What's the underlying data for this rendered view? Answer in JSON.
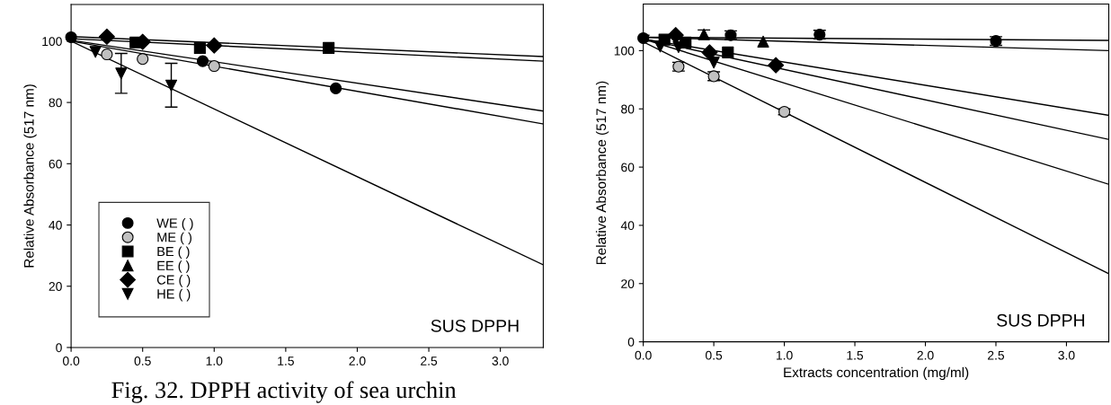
{
  "chart_data": [
    {
      "type": "scatter",
      "ylabel": "Relative Absorbance (517 nm)",
      "xlim": [
        0,
        3.3
      ],
      "ylim": [
        0,
        112
      ],
      "xticks": [
        {
          "value": 0,
          "label": "0.0"
        },
        {
          "value": 0.5,
          "label": "0.5"
        },
        {
          "value": 1.0,
          "label": "1.0"
        },
        {
          "value": 1.5,
          "label": "1.5"
        },
        {
          "value": 2.0,
          "label": "2.0"
        },
        {
          "value": 2.5,
          "label": "2.5"
        },
        {
          "value": 3.0,
          "label": "3.0"
        }
      ],
      "yticks": [
        0,
        20,
        40,
        60,
        80,
        100
      ],
      "grid": false,
      "legend": "bottom left",
      "annotations": [
        "SUS DPPH",
        "Fig. 32. DPPH activity of sea urchin"
      ],
      "series": [
        {
          "name": "WE ( )",
          "color": "#000000",
          "marker": "circle",
          "x": [
            0,
            0.92,
            1.85
          ],
          "values": [
            101.3,
            93.5,
            84.6
          ]
        },
        {
          "name": "ME ( )",
          "color": "#c0c0c0",
          "marker": "circle",
          "x": [
            0.25,
            0.5,
            1.0
          ],
          "values": [
            95.7,
            94.2,
            91.9
          ]
        },
        {
          "name": "BE ( )",
          "color": "#000000",
          "marker": "square",
          "x": [
            0.45,
            0.9,
            1.8
          ],
          "values": [
            99.6,
            97.8,
            97.8
          ]
        },
        {
          "name": "EE ( )",
          "color": "#000000",
          "marker": "triangle"
        },
        {
          "name": "CE ( )",
          "color": "#000000",
          "marker": "diamond",
          "x": [
            0.25,
            0.5,
            1.0
          ],
          "values": [
            101.5,
            99.8,
            98.6
          ]
        },
        {
          "name": "HE ( )",
          "color": "#000000",
          "marker": "triangle-down",
          "x": [
            0.17,
            0.35,
            0.7
          ],
          "values": [
            96.5,
            89.5,
            85.5
          ],
          "errors": [
            null,
            [
              83,
              96
            ],
            [
              78.5,
              92.8
            ]
          ]
        },
        {
          "type": "line",
          "color": "#000000",
          "x": [
            0,
            3.3
          ],
          "values": [
            101.5,
            95
          ]
        },
        {
          "type": "line",
          "color": "#000000",
          "x": [
            0,
            3.3
          ],
          "values": [
            100.8,
            93.5
          ]
        },
        {
          "type": "line",
          "color": "#000000",
          "x": [
            0,
            3.3
          ],
          "values": [
            100.3,
            77.2
          ]
        },
        {
          "type": "line",
          "color": "#000000",
          "x": [
            0,
            3.3
          ],
          "values": [
            100,
            73
          ]
        },
        {
          "type": "line",
          "color": "#000000",
          "x": [
            0,
            3.3
          ],
          "values": [
            100,
            27
          ]
        }
      ]
    },
    {
      "type": "scatter",
      "xlabel": "Extracts concentration (mg/ml)",
      "ylabel": "Relative Absorbance (517 nm)",
      "xlim": [
        0,
        3.3
      ],
      "ylim": [
        0,
        116
      ],
      "xticks": [
        {
          "value": 0,
          "label": "0.0"
        },
        {
          "value": 0.5,
          "label": "0.5"
        },
        {
          "value": 1.0,
          "label": "1.0"
        },
        {
          "value": 1.5,
          "label": "1.5"
        },
        {
          "value": 2.0,
          "label": "2.0"
        },
        {
          "value": 2.5,
          "label": "2.5"
        },
        {
          "value": 3.0,
          "label": "3.0"
        }
      ],
      "yticks": [
        0,
        20,
        40,
        60,
        80,
        100
      ],
      "grid": false,
      "legend": false,
      "annotations": [
        "SUS DPPH"
      ],
      "series": [
        {
          "color": "#000000",
          "marker": "circle",
          "x": [
            0,
            0.62,
            1.25,
            2.5
          ],
          "values": [
            104.3,
            105.3,
            105.5,
            103.3
          ],
          "errors": [
            1,
            1.5,
            1.5,
            1.5
          ]
        },
        {
          "color": "#c0c0c0",
          "marker": "circle",
          "x": [
            0.25,
            0.5,
            1.0
          ],
          "values": [
            94.5,
            91.2,
            79
          ],
          "errors": [
            1.5,
            1.5,
            1
          ]
        },
        {
          "color": "#000000",
          "marker": "square",
          "x": [
            0.15,
            0.3,
            0.6
          ],
          "values": [
            103.8,
            102.8,
            99.4
          ]
        },
        {
          "color": "#000000",
          "marker": "triangle",
          "x": [
            0.43,
            0.85
          ],
          "values": [
            105.6,
            103.1
          ],
          "errors": [
            1.5,
            null
          ]
        },
        {
          "color": "#000000",
          "marker": "diamond",
          "x": [
            0.23,
            0.47,
            0.94
          ],
          "values": [
            105.3,
            99.4,
            95
          ]
        },
        {
          "color": "#000000",
          "marker": "triangle-down",
          "x": [
            0.12,
            0.25,
            0.5
          ],
          "values": [
            101.4,
            101.2,
            95.9
          ]
        },
        {
          "type": "line",
          "color": "#000000",
          "x": [
            0,
            3.3
          ],
          "values": [
            104.6,
            103.5
          ]
        },
        {
          "type": "line",
          "color": "#000000",
          "x": [
            0,
            3.3
          ],
          "values": [
            104.6,
            100
          ]
        },
        {
          "type": "line",
          "color": "#000000",
          "x": [
            0,
            3.3
          ],
          "values": [
            104,
            77.8
          ]
        },
        {
          "type": "line",
          "color": "#000000",
          "x": [
            0,
            3.3
          ],
          "values": [
            104,
            69.5
          ]
        },
        {
          "type": "line",
          "color": "#000000",
          "x": [
            0,
            3.3
          ],
          "values": [
            104,
            54.1
          ]
        },
        {
          "type": "line",
          "color": "#000000",
          "x": [
            0,
            3.3
          ],
          "values": [
            103,
            23.4
          ]
        }
      ]
    }
  ]
}
